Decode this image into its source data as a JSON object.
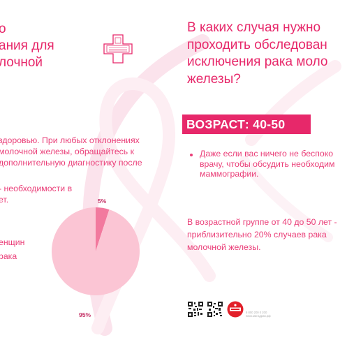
{
  "left": {
    "title_lines": [
      "о",
      "ания для",
      "лочной"
    ],
    "body_lines": [
      "здоровью. При любых отклонениях",
      "молочной железы, обращайтесь к",
      "дополнительную диагностику после"
    ],
    "stat_lines": [
      "- необходимости в",
      "ет."
    ],
    "women_lines": [
      "енщин",
      "рака"
    ],
    "pie": {
      "small_label": "5%",
      "big_label": "95%"
    }
  },
  "right": {
    "title_lines": [
      "В каких случая нужно",
      "проходить обследован",
      "исключения рака моло",
      "железы?"
    ],
    "age_heading": "ВОЗРАСТ: 40-50",
    "bullet_lines": [
      "Даже если вас ничего не беспоко",
      "врачу, чтобы обсудить необходим",
      "маммографии."
    ],
    "stat_lines": [
      "В возрастной группе от 40 до 50 лет -",
      "приблизительно 20% случаев рака",
      "молочной железы."
    ],
    "footer_lines": [
      "8 800 200 0 200",
      "www.минздрав.рф"
    ]
  },
  "chart_data": {
    "type": "pie",
    "categories": [
      "",
      ""
    ],
    "values": [
      5,
      95
    ],
    "labels": [
      "5%",
      "95%"
    ],
    "colors": [
      "#f2799e",
      "#fbc5d4"
    ]
  },
  "colors": {
    "accent": "#e7286a",
    "text_pink": "#ea3e78",
    "pie_small": "#f2799e",
    "pie_big": "#fbc5d4",
    "ribbon": "#fce9ef"
  },
  "icons": {
    "logo": "medical-cross-logo-icon",
    "qr1": "qr-code-icon",
    "qr2": "qr-code-icon",
    "badge": "health-ministry-badge-icon"
  }
}
